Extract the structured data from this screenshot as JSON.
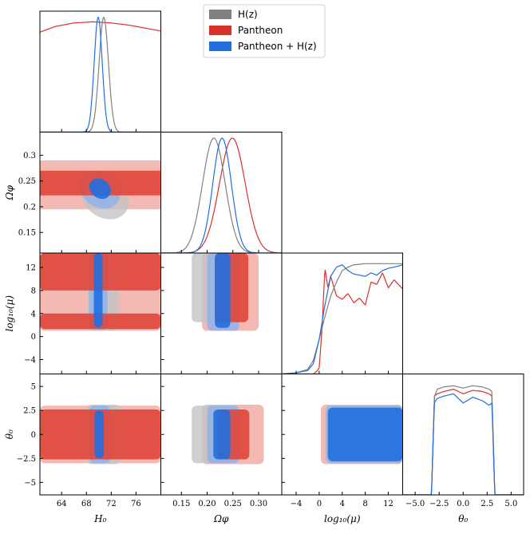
{
  "chart_data": {
    "type": "corner-plot",
    "legend": {
      "position": "top-center",
      "entries": [
        {
          "label": "H(z)",
          "color": "#808080"
        },
        {
          "label": "Pantheon",
          "color": "#d9302a"
        },
        {
          "label": "Pantheon + H(z)",
          "color": "#1f6fe0"
        }
      ]
    },
    "parameters": [
      {
        "key": "H0",
        "label": "H_0",
        "label_display": "H₀",
        "range": [
          60.5,
          80.0
        ],
        "ticks": [
          64,
          68,
          72,
          76
        ],
        "tick_labels": [
          "64",
          "68",
          "72",
          "76"
        ]
      },
      {
        "key": "Omega_phi",
        "label": "Omega_phi",
        "label_display": "Ωφ",
        "range": [
          0.11,
          0.345
        ],
        "ticks": [
          0.15,
          0.2,
          0.25,
          0.3
        ],
        "tick_labels": [
          "0.15",
          "0.20",
          "0.25",
          "0.30"
        ],
        "y_tick_labels": [
          "0.15",
          "0.2",
          "0.25",
          "0.3"
        ]
      },
      {
        "key": "log10_mu",
        "label": "log10(mu)",
        "label_display": "log₁₀(μ)",
        "range": [
          -6.5,
          14.5
        ],
        "ticks": [
          -4,
          0,
          4,
          8,
          12
        ],
        "tick_labels": [
          "−4",
          "0",
          "4",
          "8",
          "12"
        ],
        "y_ticks": [
          -4,
          0,
          4,
          8,
          12
        ],
        "y_tick_labels": [
          "−4",
          "0",
          "4",
          "8",
          "12"
        ]
      },
      {
        "key": "theta0",
        "label": "theta_0",
        "label_display": "θ₀",
        "range": [
          -6.3,
          6.3
        ],
        "ticks": [
          -5,
          -2.5,
          0,
          2.5,
          5
        ],
        "tick_labels": [
          "−5.0",
          "−2.5",
          "0.0",
          "2.5",
          "5.0"
        ],
        "y_tick_labels": [
          "−5",
          "−2.5",
          "0",
          "2.5",
          "5"
        ]
      }
    ],
    "marginals": {
      "H0": {
        "H(z)": {
          "type": "gaussian",
          "mean": 70.8,
          "sd": 0.75
        },
        "Pantheon": {
          "type": "flat-hump",
          "values_x": [
            60.5,
            63,
            66,
            69,
            72,
            75,
            78,
            80
          ],
          "values_y": [
            0.87,
            0.92,
            0.95,
            0.96,
            0.95,
            0.93,
            0.9,
            0.88
          ]
        },
        "Pantheon + H(z)": {
          "type": "gaussian",
          "mean": 69.9,
          "sd": 0.65
        }
      },
      "Omega_phi": {
        "H(z)": {
          "type": "gaussian",
          "mean": 0.213,
          "sd": 0.022
        },
        "Pantheon": {
          "type": "gaussian",
          "mean": 0.249,
          "sd": 0.025
        },
        "Pantheon + H(z)": {
          "type": "gaussian",
          "mean": 0.229,
          "sd": 0.018
        }
      },
      "log10_mu": {
        "H(z)": {
          "x": [
            -6.5,
            -4,
            -2,
            -1,
            0,
            1,
            2,
            3,
            4,
            5,
            6,
            8,
            10,
            12,
            14.5
          ],
          "y": [
            0,
            0.01,
            0.04,
            0.12,
            0.3,
            0.5,
            0.68,
            0.8,
            0.9,
            0.93,
            0.95,
            0.96,
            0.96,
            0.96,
            0.96
          ]
        },
        "Pantheon": {
          "x": [
            -6.5,
            -1,
            -0.5,
            0,
            0.5,
            1,
            1.5,
            2,
            3,
            4,
            5,
            6,
            7,
            8,
            9,
            10,
            11,
            12,
            13,
            14.5
          ],
          "y": [
            0,
            0,
            0.02,
            0.05,
            0.4,
            0.92,
            0.75,
            0.85,
            0.68,
            0.65,
            0.7,
            0.62,
            0.66,
            0.6,
            0.8,
            0.78,
            0.88,
            0.75,
            0.82,
            0.74
          ]
        },
        "Pantheon + H(z)": {
          "x": [
            -6.5,
            -4,
            -2,
            -1,
            0,
            1,
            2,
            3,
            4,
            5,
            6,
            7,
            8,
            9,
            10,
            11,
            12,
            13,
            14.5
          ],
          "y": [
            0,
            0.01,
            0.03,
            0.09,
            0.3,
            0.6,
            0.85,
            0.93,
            0.95,
            0.9,
            0.87,
            0.86,
            0.85,
            0.88,
            0.86,
            0.9,
            0.92,
            0.93,
            0.95
          ]
        }
      },
      "theta0": {
        "H(z)": {
          "x": [
            -6.3,
            -3.3,
            -3.0,
            -2.7,
            -2,
            -1,
            0,
            1,
            2,
            2.7,
            3.0,
            3.3,
            6.3
          ],
          "y": [
            0,
            0,
            0.85,
            0.92,
            0.94,
            0.95,
            0.93,
            0.95,
            0.94,
            0.92,
            0.9,
            0,
            0
          ]
        },
        "Pantheon": {
          "x": [
            -6.3,
            -3.3,
            -3.0,
            -2.7,
            -2,
            -1,
            0,
            1,
            2,
            2.7,
            3.0,
            3.3,
            6.3
          ],
          "y": [
            0,
            0,
            0.86,
            0.88,
            0.9,
            0.92,
            0.88,
            0.91,
            0.9,
            0.88,
            0.86,
            0,
            0
          ]
        },
        "Pantheon + H(z)": {
          "x": [
            -6.3,
            -3.3,
            -3.0,
            -2.7,
            -2,
            -1,
            0,
            1,
            2,
            2.7,
            3.0,
            3.3,
            6.3
          ],
          "y": [
            0,
            0,
            0.8,
            0.84,
            0.86,
            0.88,
            0.8,
            0.85,
            0.82,
            0.78,
            0.8,
            0,
            0
          ]
        }
      }
    },
    "joint_contours": [
      {
        "x": "H0",
        "y": "Omega_phi",
        "regions": [
          {
            "dataset": "Pantheon",
            "level": "2sigma",
            "shape": "band",
            "y_range": [
              0.195,
              0.29
            ]
          },
          {
            "dataset": "Pantheon",
            "level": "1sigma",
            "shape": "band",
            "y_range": [
              0.222,
              0.27
            ]
          },
          {
            "dataset": "H(z)",
            "level": "2sigma",
            "shape": "ellipse",
            "center": [
              70.9,
              0.22
            ],
            "rx": 3.3,
            "ry": 0.016,
            "angle": 52
          },
          {
            "dataset": "Pantheon + H(z)",
            "level": "2sigma",
            "shape": "ellipse",
            "center": [
              70.2,
              0.233
            ],
            "rx": 2.8,
            "ry": 0.013,
            "angle": 52
          },
          {
            "dataset": "Pantheon + H(z)",
            "level": "1sigma",
            "shape": "ellipse",
            "center": [
              70.2,
              0.235
            ],
            "rx": 1.5,
            "ry": 0.007,
            "angle": 52
          }
        ]
      },
      {
        "x": "H0",
        "y": "log10_mu",
        "regions": [
          {
            "dataset": "Pantheon",
            "level": "2sigma",
            "shape": "rect",
            "x_range": [
              60.5,
              80
            ],
            "y_range": [
              1.0,
              14.5
            ]
          },
          {
            "dataset": "Pantheon",
            "level": "1sigma",
            "shape": "rect",
            "x_range": [
              60.5,
              80
            ],
            "y_range": [
              8.0,
              14.5
            ]
          },
          {
            "dataset": "Pantheon",
            "level": "1sigma",
            "shape": "rect",
            "x_range": [
              60.5,
              80
            ],
            "y_range": [
              1.3,
              4.0
            ]
          },
          {
            "dataset": "H(z)",
            "level": "2sigma",
            "shape": "rect",
            "x_range": [
              68.2,
              73.2
            ],
            "y_range": [
              1.0,
              14.5
            ]
          },
          {
            "dataset": "Pantheon + H(z)",
            "level": "2sigma",
            "shape": "rect",
            "x_range": [
              68.4,
              71.4
            ],
            "y_range": [
              1.2,
              14.5
            ]
          },
          {
            "dataset": "Pantheon + H(z)",
            "level": "1sigma",
            "shape": "rect",
            "x_range": [
              69.2,
              70.6
            ],
            "y_range": [
              1.6,
              14.5
            ]
          }
        ]
      },
      {
        "x": "Omega_phi",
        "y": "log10_mu",
        "regions": [
          {
            "dataset": "Pantheon",
            "level": "2sigma",
            "shape": "rect",
            "x_range": [
              0.19,
              0.3
            ],
            "y_range": [
              1.0,
              14.5
            ]
          },
          {
            "dataset": "H(z)",
            "level": "2sigma",
            "shape": "rect",
            "x_range": [
              0.17,
              0.255
            ],
            "y_range": [
              2.5,
              14.5
            ]
          },
          {
            "dataset": "Pantheon",
            "level": "1sigma",
            "shape": "rect",
            "x_range": [
              0.215,
              0.28
            ],
            "y_range": [
              2.5,
              14.5
            ]
          },
          {
            "dataset": "Pantheon + H(z)",
            "level": "2sigma",
            "shape": "rect",
            "x_range": [
              0.2,
              0.262
            ],
            "y_range": [
              1.0,
              14.5
            ]
          },
          {
            "dataset": "Pantheon + H(z)",
            "level": "1sigma",
            "shape": "rect",
            "x_range": [
              0.215,
              0.245
            ],
            "y_range": [
              1.5,
              14.5
            ]
          }
        ]
      },
      {
        "x": "H0",
        "y": "theta0",
        "regions": [
          {
            "dataset": "Pantheon",
            "level": "2sigma",
            "shape": "rect",
            "x_range": [
              60.5,
              80
            ],
            "y_range": [
              -3.0,
              3.0
            ]
          },
          {
            "dataset": "Pantheon",
            "level": "1sigma",
            "shape": "rect",
            "x_range": [
              60.5,
              80
            ],
            "y_range": [
              -2.6,
              2.6
            ]
          },
          {
            "dataset": "H(z)",
            "level": "2sigma",
            "shape": "rect",
            "x_range": [
              68.0,
              73.5
            ],
            "y_range": [
              -3.1,
              3.1
            ]
          },
          {
            "dataset": "Pantheon + H(z)",
            "level": "2sigma",
            "shape": "rect",
            "x_range": [
              68.5,
              71.8
            ],
            "y_range": [
              -3.0,
              3.0
            ]
          },
          {
            "dataset": "Pantheon + H(z)",
            "level": "1sigma",
            "shape": "rect",
            "x_range": [
              69.3,
              70.8
            ],
            "y_range": [
              -2.5,
              2.5
            ]
          }
        ]
      },
      {
        "x": "Omega_phi",
        "y": "theta0",
        "regions": [
          {
            "dataset": "Pantheon",
            "level": "2sigma",
            "shape": "rect",
            "x_range": [
              0.19,
              0.31
            ],
            "y_range": [
              -3.1,
              3.1
            ]
          },
          {
            "dataset": "H(z)",
            "level": "2sigma",
            "shape": "rect",
            "x_range": [
              0.17,
              0.26
            ],
            "y_range": [
              -3.0,
              3.0
            ]
          },
          {
            "dataset": "Pantheon",
            "level": "1sigma",
            "shape": "rect",
            "x_range": [
              0.22,
              0.282
            ],
            "y_range": [
              -2.6,
              2.6
            ]
          },
          {
            "dataset": "Pantheon + H(z)",
            "level": "2sigma",
            "shape": "rect",
            "x_range": [
              0.2,
              0.262
            ],
            "y_range": [
              -3.0,
              3.0
            ]
          },
          {
            "dataset": "Pantheon + H(z)",
            "level": "1sigma",
            "shape": "rect",
            "x_range": [
              0.212,
              0.245
            ],
            "y_range": [
              -2.6,
              2.6
            ]
          }
        ]
      },
      {
        "x": "log10_mu",
        "y": "theta0",
        "regions": [
          {
            "dataset": "Pantheon",
            "level": "2sigma",
            "shape": "rect",
            "x_range": [
              0.3,
              14.5
            ],
            "y_range": [
              -3.1,
              3.1
            ]
          },
          {
            "dataset": "H(z)",
            "level": "2sigma",
            "shape": "rect",
            "x_range": [
              1.0,
              14.5
            ],
            "y_range": [
              -3.0,
              3.0
            ]
          },
          {
            "dataset": "Pantheon + H(z)",
            "level": "2sigma",
            "shape": "rect",
            "x_range": [
              1.2,
              14.5
            ],
            "y_range": [
              -3.0,
              3.0
            ]
          },
          {
            "dataset": "Pantheon + H(z)",
            "level": "1sigma",
            "shape": "rect",
            "x_range": [
              1.5,
              14.5
            ],
            "y_range": [
              -2.8,
              2.8
            ]
          }
        ]
      }
    ],
    "styles": {
      "H(z)": {
        "line": "#808080",
        "fill1": "#7a7a7a",
        "fill2": "#c4c4c4"
      },
      "Pantheon": {
        "line": "#d9302a",
        "fill1": "#e0463a",
        "fill2": "#f2a7a0"
      },
      "Pantheon + H(z)": {
        "line": "#1f6fe0",
        "fill1": "#1f6fe0",
        "fill2": "#8fb2ea"
      }
    }
  }
}
